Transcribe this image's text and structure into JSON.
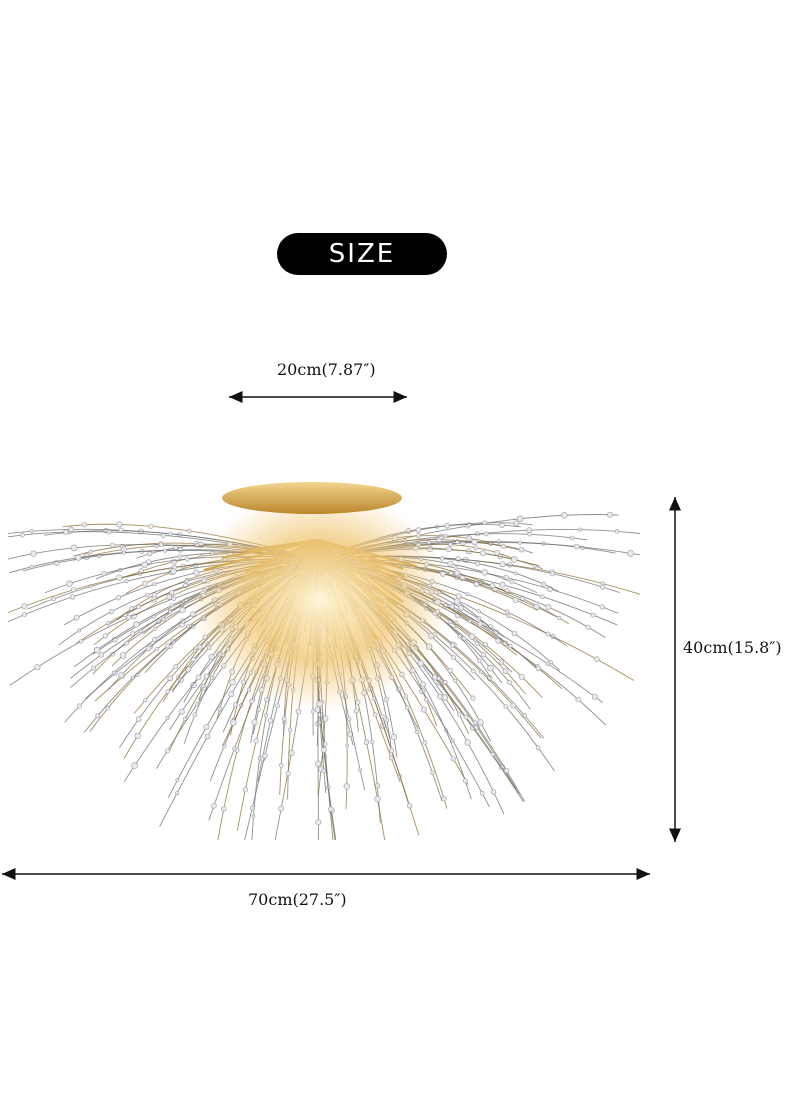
{
  "heading": "SIZE",
  "dimensions": {
    "top_width": "20cm(7.87″)",
    "height": "40cm(15.8″)",
    "total_width": "70cm(27.5″)"
  },
  "colors": {
    "badge": "#000000",
    "badge_text": "#ffffff",
    "gold": "#c99a3e",
    "wire": "#555555"
  }
}
